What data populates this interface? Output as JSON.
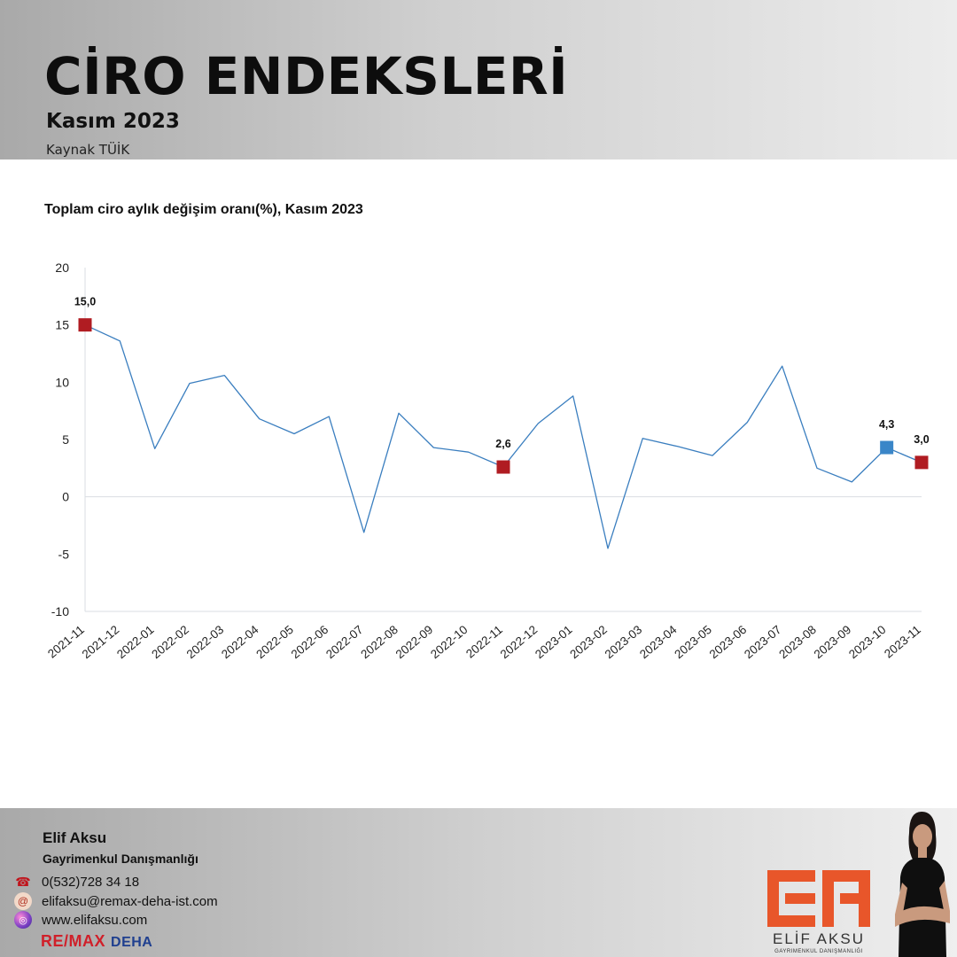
{
  "header": {
    "title": "CİRO ENDEKSLERİ",
    "subtitle": "Kasım 2023",
    "source": "Kaynak TÜİK"
  },
  "chart_data": {
    "type": "line",
    "title": "Toplam ciro aylık değişim oranı(%), Kasım 2023",
    "xlabel": "",
    "ylabel": "",
    "ylim": [
      -10,
      20
    ],
    "yticks": [
      20,
      15,
      10,
      5,
      0,
      -5,
      -10
    ],
    "grid": false,
    "legend": "none",
    "x": [
      "2021-11",
      "2021-12",
      "2022-01",
      "2022-02",
      "2022-03",
      "2022-04",
      "2022-05",
      "2022-06",
      "2022-07",
      "2022-08",
      "2022-09",
      "2022-10",
      "2022-11",
      "2022-12",
      "2023-01",
      "2023-02",
      "2023-03",
      "2023-04",
      "2023-05",
      "2023-06",
      "2023-07",
      "2023-08",
      "2023-09",
      "2023-10",
      "2023-11"
    ],
    "series": [
      {
        "values": [
          15.0,
          13.6,
          4.2,
          9.9,
          10.6,
          6.8,
          5.5,
          7.0,
          -3.1,
          7.3,
          4.3,
          3.9,
          2.6,
          6.4,
          8.8,
          -4.5,
          5.1,
          4.4,
          3.6,
          6.5,
          11.4,
          2.5,
          1.3,
          4.3,
          3.0
        ],
        "color": "#3a7ebf"
      }
    ],
    "highlights": [
      {
        "x": "2021-11",
        "value": 15.0,
        "label": "15,0",
        "color": "#b01c22"
      },
      {
        "x": "2022-11",
        "value": 2.6,
        "label": "2,6",
        "color": "#b01c22"
      },
      {
        "x": "2023-10",
        "value": 4.3,
        "label": "4,3",
        "color": "#3a86c8"
      },
      {
        "x": "2023-11",
        "value": 3.0,
        "label": "3,0",
        "color": "#b01c22"
      }
    ]
  },
  "footer": {
    "name": "Elif Aksu",
    "role": "Gayrimenkul Danışmanlığı",
    "phone": "0(532)728 34 18",
    "email": "elifaksu@remax-deha-ist.com",
    "website": "www.elifaksu.com",
    "brand_main": "RE/MAX",
    "brand_sub": "DEHA",
    "logo_name": "ELİF AKSU",
    "logo_tagline": "GAYRIMENKUL DANIŞMANLIĞI",
    "logo_color": "#e8562a"
  }
}
